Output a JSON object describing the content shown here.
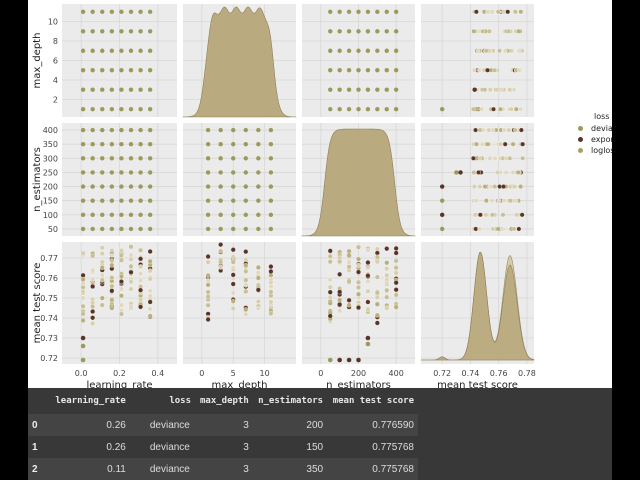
{
  "chart_data": {
    "type": "pairplot",
    "variables": [
      "max_depth",
      "n_estimators",
      "mean test score"
    ],
    "x_variables": [
      "learning_rate",
      "max_depth",
      "n_estimators",
      "mean test score"
    ],
    "hue": "loss",
    "legend": {
      "title": "loss",
      "position": "right",
      "entries": [
        {
          "label": "deviance",
          "color": "#9c9a5a"
        },
        {
          "label": "exponential",
          "color": "#5a3428"
        },
        {
          "label": "logloss",
          "color": "#a8a060"
        }
      ]
    },
    "axes": {
      "learning_rate": {
        "label": "learning_rate",
        "ticks": [
          "0.0",
          "0.2",
          "0.4"
        ],
        "range": [
          -0.1,
          0.5
        ],
        "values": [
          0.01,
          0.06,
          0.11,
          0.16,
          0.21,
          0.26,
          0.31,
          0.36
        ]
      },
      "max_depth": {
        "label": "max_depth",
        "ticks": [
          "0",
          "5",
          "10"
        ],
        "y_ticks": [
          "2",
          "4",
          "6",
          "8",
          "10"
        ],
        "range": [
          -3,
          15
        ],
        "values": [
          1,
          3,
          5,
          7,
          9,
          11
        ]
      },
      "n_estimators": {
        "label": "n_estimators",
        "ticks": [
          "0",
          "200",
          "400"
        ],
        "y_ticks": [
          "50",
          "100",
          "150",
          "200",
          "250",
          "300",
          "350",
          "400"
        ],
        "range": [
          -100,
          500
        ],
        "values": [
          50,
          100,
          150,
          200,
          250,
          300,
          350,
          400
        ]
      },
      "mean_test_score": {
        "label": "mean test score",
        "ticks": [
          "0.72",
          "0.74",
          "0.76",
          "0.78"
        ],
        "y_ticks": [
          "0.72",
          "0.73",
          "0.74",
          "0.75",
          "0.76",
          "0.77"
        ],
        "range": [
          0.705,
          0.785
        ],
        "y_range": [
          0.717,
          0.778
        ]
      }
    },
    "kde_mean_test_score": {
      "peaks": [
        0.72,
        0.747,
        0.768
      ],
      "peak_relative_heights": [
        0.03,
        1.0,
        0.88
      ]
    },
    "grid": true,
    "background": "#ebebeb"
  },
  "table": {
    "columns": [
      "",
      "learning_rate",
      "loss",
      "max_depth",
      "n_estimators",
      "mean test score"
    ],
    "rows": [
      {
        "index": "0",
        "learning_rate": "0.26",
        "loss": "deviance",
        "max_depth": "3",
        "n_estimators": "200",
        "mean_test_score": "0.776590"
      },
      {
        "index": "1",
        "learning_rate": "0.26",
        "loss": "deviance",
        "max_depth": "3",
        "n_estimators": "150",
        "mean_test_score": "0.775768"
      },
      {
        "index": "2",
        "learning_rate": "0.11",
        "loss": "deviance",
        "max_depth": "3",
        "n_estimators": "350",
        "mean_test_score": "0.775768"
      }
    ]
  }
}
